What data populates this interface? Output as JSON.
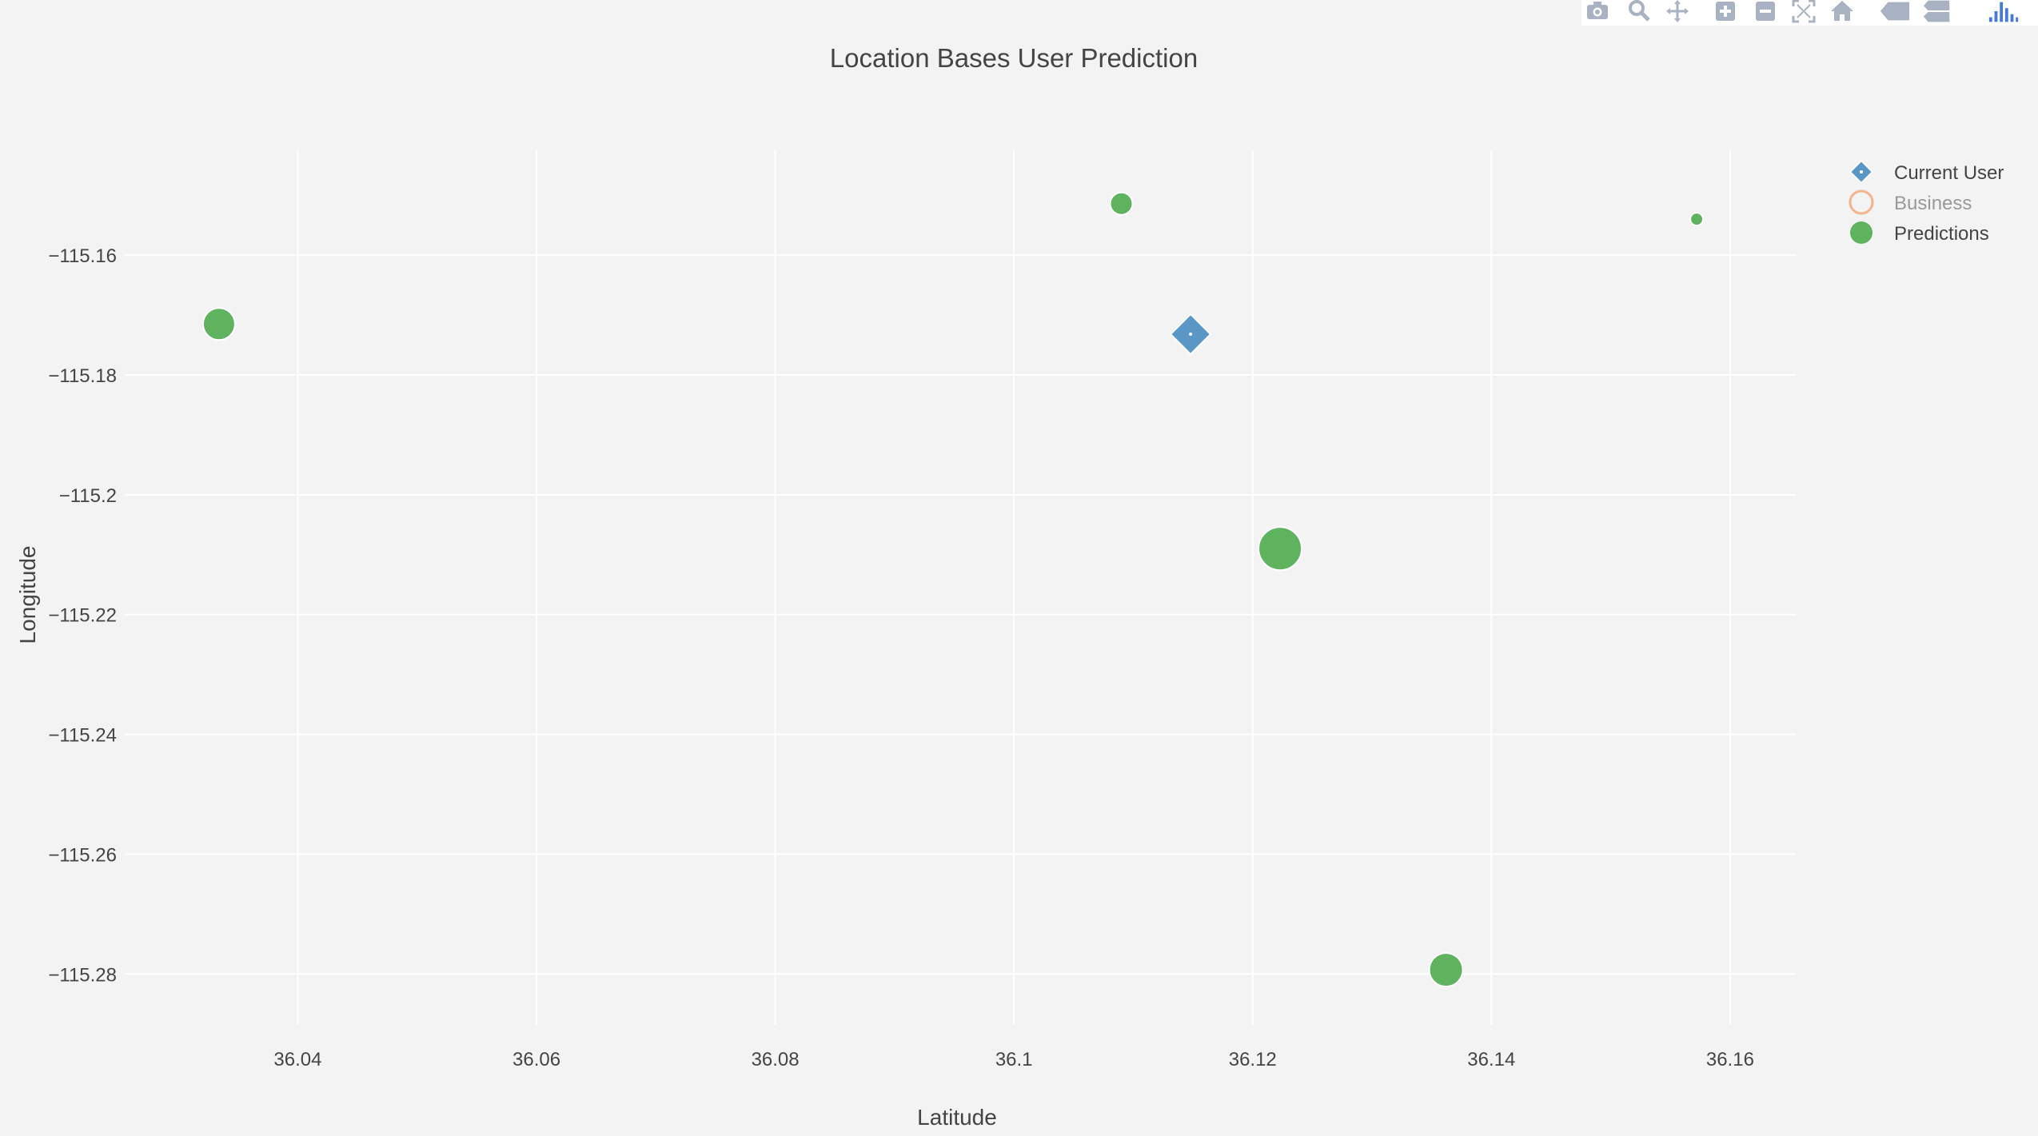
{
  "colors": {
    "background": "#f3f3f3",
    "grid": "#ffffff",
    "text": "#444444",
    "current_user": "#5b97c6",
    "business": "#f3b38c",
    "predictions": "#5fb35f",
    "modebar_icon": "#a9b2c2",
    "modebar_logo": "#447adb"
  },
  "modebar": {
    "buttons": [
      {
        "name": "camera-icon"
      },
      {
        "name": "zoom-icon"
      },
      {
        "name": "pan-icon"
      },
      {
        "name": "zoom-in-icon"
      },
      {
        "name": "zoom-out-icon"
      },
      {
        "name": "autoscale-icon"
      },
      {
        "name": "home-icon"
      },
      {
        "name": "hover-closest-icon"
      },
      {
        "name": "hover-compare-icon"
      },
      {
        "name": "plotly-logo-icon"
      }
    ]
  },
  "chart_data": {
    "type": "scatter",
    "title": "Location Bases User Prediction",
    "xlabel": "Latitude",
    "ylabel": "Longitude",
    "xlim": [
      36.0255,
      36.1655
    ],
    "ylim": [
      -115.2885,
      -115.1425
    ],
    "xticks": [
      36.04,
      36.06,
      36.08,
      36.1,
      36.12,
      36.14,
      36.16
    ],
    "xtick_labels": [
      "36.04",
      "36.06",
      "36.08",
      "36.1",
      "36.12",
      "36.14",
      "36.16"
    ],
    "yticks": [
      -115.16,
      -115.18,
      -115.2,
      -115.22,
      -115.24,
      -115.26,
      -115.28
    ],
    "ytick_labels": [
      "−115.16",
      "−115.18",
      "−115.2",
      "−115.22",
      "−115.24",
      "−115.26",
      "−115.28"
    ],
    "grid": true,
    "legend_position": "right",
    "series": [
      {
        "name": "Current User",
        "marker": "diamond",
        "points": [
          {
            "x": 36.1148,
            "y": -115.1732,
            "size": 2
          }
        ]
      },
      {
        "name": "Business",
        "marker": "circle-open",
        "legend_muted": true,
        "points": []
      },
      {
        "name": "Predictions",
        "marker": "circle",
        "points": [
          {
            "x": 36.0334,
            "y": -115.1715,
            "size": 2
          },
          {
            "x": 36.109,
            "y": -115.1514,
            "size": 1.4
          },
          {
            "x": 36.1572,
            "y": -115.154,
            "size": 0.8
          },
          {
            "x": 36.1223,
            "y": -115.209,
            "size": 2.7
          },
          {
            "x": 36.1362,
            "y": -115.2793,
            "size": 2.1
          }
        ]
      }
    ]
  }
}
